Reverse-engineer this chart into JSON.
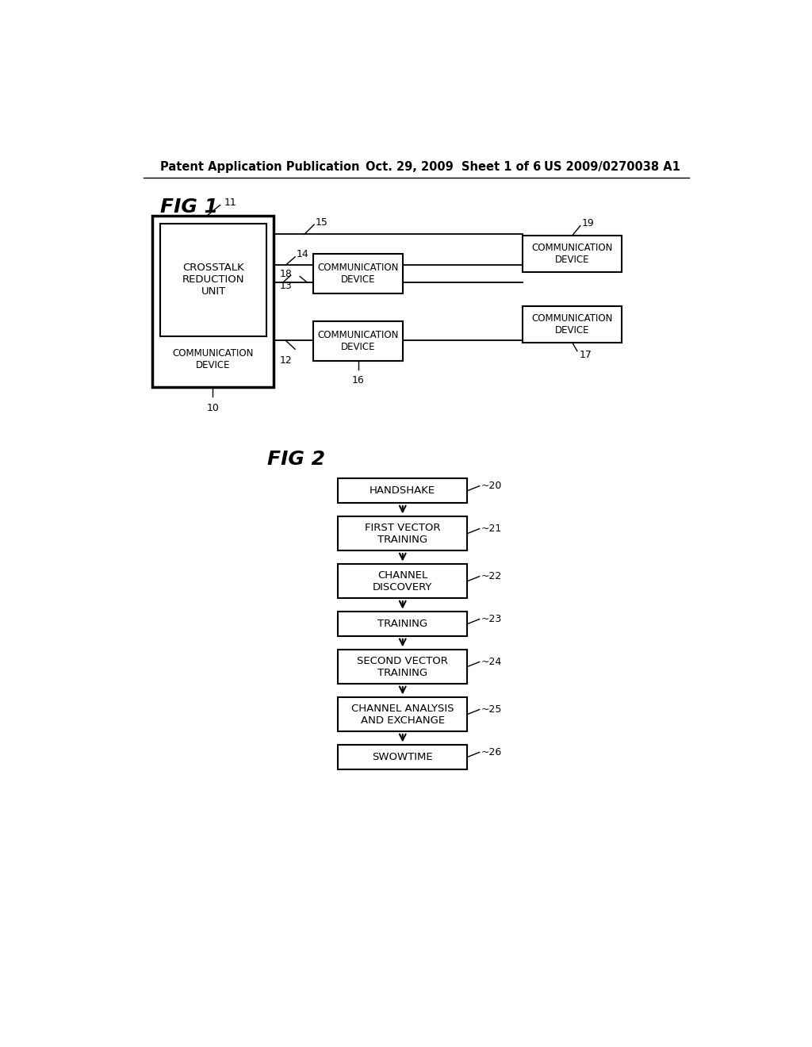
{
  "bg_color": "#ffffff",
  "header_text_left": "Patent Application Publication",
  "header_text_mid": "Oct. 29, 2009  Sheet 1 of 6",
  "header_text_right": "US 2009/0270038 A1",
  "fig1_label": "FIG 1",
  "fig2_label": "FIG 2",
  "fig2_flowchart": [
    {
      "label": "HANDSHAKE",
      "num": "20",
      "lines": 1
    },
    {
      "label": "FIRST VECTOR\nTRAINING",
      "num": "21",
      "lines": 2
    },
    {
      "label": "CHANNEL\nDISCOVERY",
      "num": "22",
      "lines": 2
    },
    {
      "label": "TRAINING",
      "num": "23",
      "lines": 1
    },
    {
      "label": "SECOND VECTOR\nTRAINING",
      "num": "24",
      "lines": 2
    },
    {
      "label": "CHANNEL ANALYSIS\nAND EXCHANGE",
      "num": "25",
      "lines": 2
    },
    {
      "label": "SWOWTIME",
      "num": "26",
      "lines": 1
    }
  ]
}
